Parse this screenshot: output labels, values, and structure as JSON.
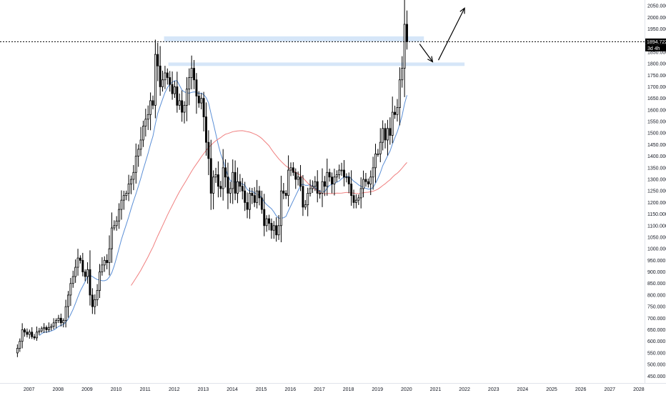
{
  "chart_data": {
    "type": "candlestick",
    "title": "",
    "xlabel": "",
    "ylabel": "",
    "xlim": [
      2006.0,
      2028.2
    ],
    "ylim": [
      420,
      2075
    ],
    "x_ticks": [
      "2007",
      "2008",
      "2009",
      "2010",
      "2011",
      "2012",
      "2013",
      "2014",
      "2015",
      "2016",
      "2017",
      "2018",
      "2019",
      "2020",
      "2021",
      "2022",
      "2023",
      "2024",
      "2025",
      "2026",
      "2027",
      "2028"
    ],
    "y_ticks": [
      "450.000",
      "500.000",
      "550.000",
      "600.000",
      "650.000",
      "700.000",
      "750.000",
      "800.000",
      "850.000",
      "900.000",
      "950.000",
      "1000.000",
      "1050.000",
      "1100.000",
      "1150.000",
      "1200.000",
      "1250.000",
      "1300.000",
      "1350.000",
      "1400.000",
      "1450.000",
      "1500.000",
      "1550.000",
      "1600.000",
      "1650.000",
      "1700.000",
      "1750.000",
      "1800.000",
      "1850.000",
      "1900.000",
      "1950.000",
      "2000.000",
      "2050.000"
    ],
    "last_price": "1894.722",
    "last_price_label": "1894.722",
    "countdown_label": "3d 4h",
    "grid": false,
    "colors": {
      "candle_up": "#ffffff",
      "candle_down": "#000000",
      "candle_border": "#000000",
      "ma_fast": "#5b8fd6",
      "ma_slow": "#f08080",
      "zone_fill": "#cfe2f7",
      "price_line": "#000000",
      "arrow": "#000000"
    },
    "closes_first_x": 2006.6,
    "closes": [
      570,
      600,
      650,
      640,
      630,
      640,
      620,
      615,
      640,
      645,
      655,
      660,
      650,
      660,
      665,
      680,
      690,
      700,
      680,
      690,
      750,
      800,
      850,
      880,
      920,
      960,
      950,
      900,
      880,
      910,
      800,
      750,
      780,
      820,
      900,
      930,
      950,
      940,
      1000,
      1090,
      1100,
      1120,
      1170,
      1210,
      1230,
      1240,
      1280,
      1300,
      1330,
      1400,
      1430,
      1470,
      1530,
      1560,
      1580,
      1640,
      1620,
      1840,
      1790,
      1700,
      1730,
      1760,
      1740,
      1710,
      1670,
      1700,
      1620,
      1640,
      1590,
      1620,
      1690,
      1740,
      1780,
      1730,
      1660,
      1630,
      1650,
      1570,
      1460,
      1390,
      1240,
      1310,
      1320,
      1270,
      1260,
      1350,
      1310,
      1240,
      1260,
      1330,
      1240,
      1290,
      1270,
      1250,
      1200,
      1170,
      1240,
      1230,
      1200,
      1250,
      1220,
      1170,
      1100,
      1130,
      1110,
      1080,
      1100,
      1060,
      1100,
      1250,
      1240,
      1230,
      1340,
      1350,
      1330,
      1300,
      1310,
      1270,
      1180,
      1190,
      1240,
      1260,
      1270,
      1290,
      1240,
      1240,
      1290,
      1270,
      1330,
      1310,
      1280,
      1310,
      1320,
      1340,
      1340,
      1310,
      1310,
      1280,
      1230,
      1200,
      1210,
      1220,
      1260,
      1300,
      1290,
      1280,
      1310,
      1350,
      1410,
      1410,
      1460,
      1520,
      1470,
      1520,
      1490,
      1590,
      1580,
      1610,
      1730,
      1780,
      1970,
      1894.7
    ],
    "annotations": [
      {
        "type": "zone",
        "name": "resistance-zone-2011-high",
        "x0": 2011.65,
        "x1": 2020.6,
        "y0": 1896,
        "y1": 1918
      },
      {
        "type": "zone",
        "name": "support-zone-1800",
        "x0": 2011.8,
        "x1": 2022.0,
        "y0": 1790,
        "y1": 1805
      },
      {
        "type": "arrow",
        "name": "pullback-arrow",
        "points": [
          [
            2020.45,
            1885
          ],
          [
            2020.9,
            1808
          ]
        ]
      },
      {
        "type": "arrow",
        "name": "target-arrow",
        "points": [
          [
            2021.1,
            1815
          ],
          [
            2022.0,
            2040
          ]
        ]
      }
    ]
  }
}
